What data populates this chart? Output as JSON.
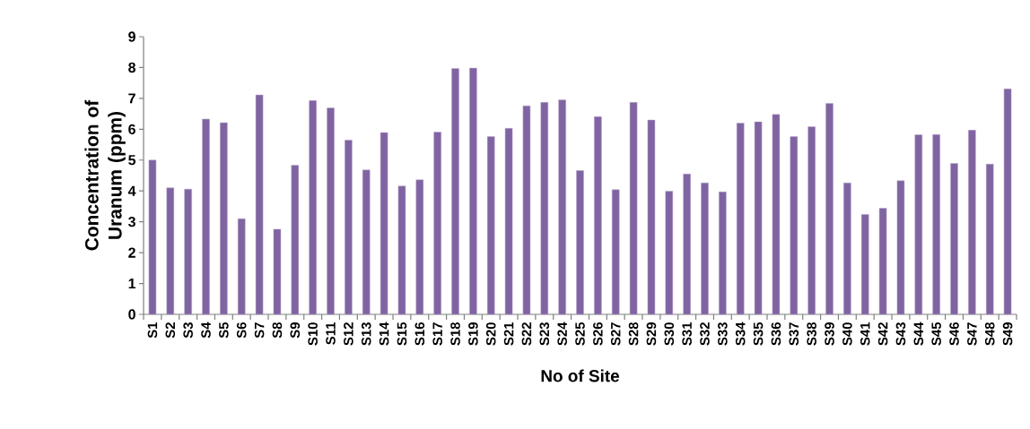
{
  "chart_data": {
    "type": "bar",
    "xlabel": "No of Site",
    "ylabel": "Concentration of Uranum (ppm)",
    "categories": [
      "S1",
      "S2",
      "S3",
      "S4",
      "S5",
      "S6",
      "S7",
      "S8",
      "S9",
      "S10",
      "S11",
      "S12",
      "S13",
      "S14",
      "S15",
      "S16",
      "S17",
      "S18",
      "S19",
      "S20",
      "S21",
      "S22",
      "S23",
      "S24",
      "S25",
      "S26",
      "S27",
      "S28",
      "S29",
      "S30",
      "S31",
      "S32",
      "S33",
      "S34",
      "S35",
      "S36",
      "S37",
      "S38",
      "S39",
      "S40",
      "S41",
      "S42",
      "S43",
      "S44",
      "S45",
      "S46",
      "S47",
      "S48",
      "S49"
    ],
    "values": [
      5.0,
      4.1,
      4.06,
      6.33,
      6.21,
      3.1,
      7.11,
      2.76,
      4.83,
      6.93,
      6.69,
      5.65,
      4.68,
      5.89,
      4.16,
      4.36,
      5.91,
      7.97,
      7.98,
      5.76,
      6.03,
      6.76,
      6.87,
      6.95,
      4.66,
      6.41,
      4.04,
      6.87,
      6.3,
      3.99,
      4.55,
      4.26,
      3.97,
      6.2,
      6.24,
      6.48,
      5.76,
      6.08,
      6.84,
      4.26,
      3.24,
      3.44,
      4.33,
      5.82,
      5.83,
      4.89,
      5.97,
      4.87,
      7.31
    ],
    "color": "#8064a2",
    "ylim": [
      0,
      9
    ],
    "yticks": [
      0,
      1,
      2,
      3,
      4,
      5,
      6,
      7,
      8,
      9
    ],
    "grid": false
  }
}
